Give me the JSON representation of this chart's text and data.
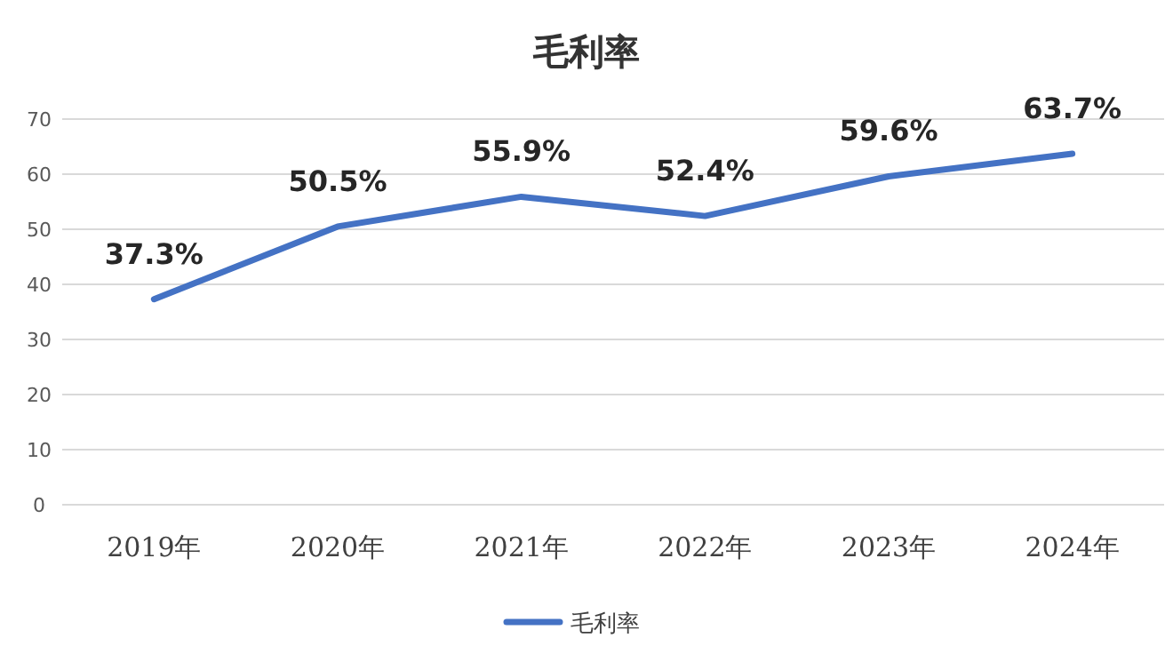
{
  "chart_data": {
    "type": "line",
    "title": "毛利率",
    "categories": [
      "2019年",
      "2020年",
      "2021年",
      "2022年",
      "2023年",
      "2024年"
    ],
    "series": [
      {
        "name": "毛利率",
        "color": "#4472c4",
        "values": [
          37.3,
          50.5,
          55.9,
          52.4,
          59.6,
          63.7
        ],
        "value_labels": [
          "37.3%",
          "50.5%",
          "55.9%",
          "52.4%",
          "59.6%",
          "63.7%"
        ]
      }
    ],
    "ylim": [
      0,
      70
    ],
    "yticks": [
      0,
      10,
      20,
      30,
      40,
      50,
      60,
      70
    ],
    "grid": "y",
    "legend": "bottom"
  }
}
